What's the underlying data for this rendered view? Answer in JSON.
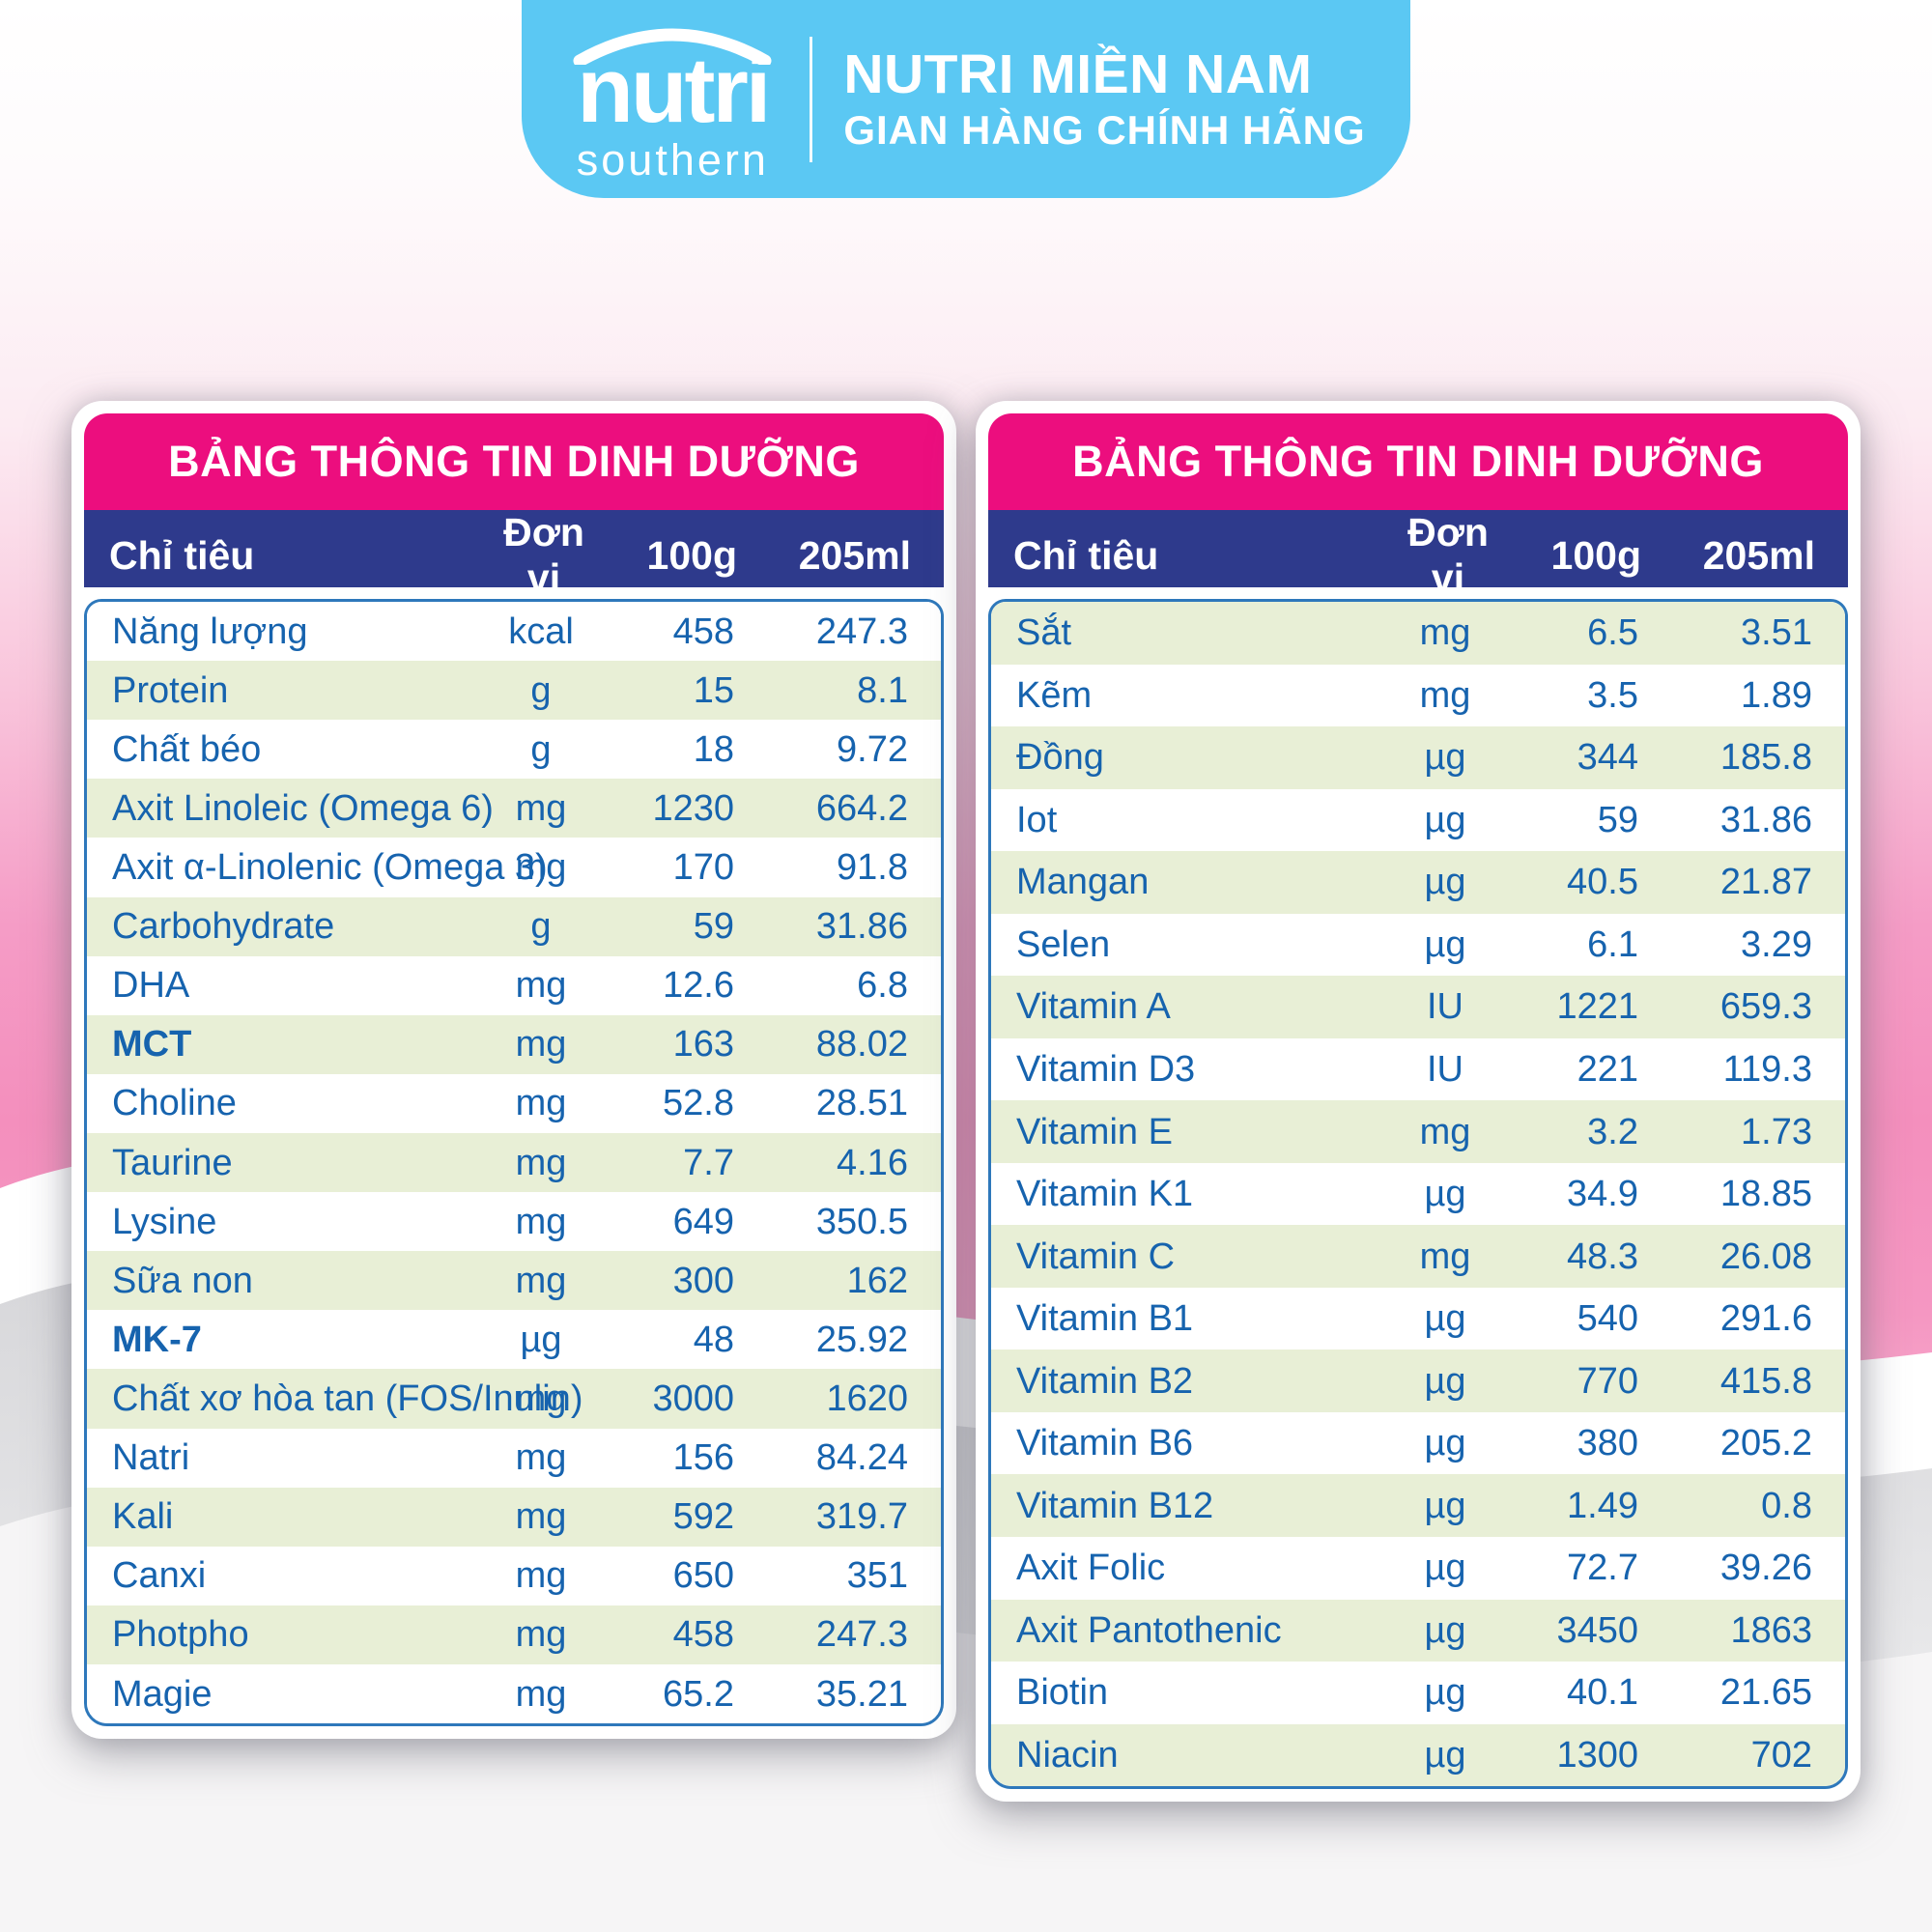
{
  "badge": {
    "logo_primary": "nutri",
    "logo_secondary": "southern",
    "store_name": "NUTRI MIỀN NAM",
    "store_subtitle": "GIAN HÀNG CHÍNH HÃNG",
    "background_color": "#5bc8f3"
  },
  "colors": {
    "header_magenta": "#ec0e7e",
    "header_navy": "#2e3a8c",
    "row_green": "#e8efd6",
    "text_blue": "#1663ae",
    "body_border_blue": "#2e78bb"
  },
  "tables": [
    {
      "title": "BẢNG THÔNG TIN DINH DƯỠNG",
      "columns": [
        "Chỉ tiêu",
        "Đơn vị",
        "100g",
        "205ml"
      ],
      "first_row_shaded": false,
      "rows": [
        {
          "name": "Năng lượng",
          "unit": "kcal",
          "per100g": "458",
          "per205ml": "247.3",
          "bold": false
        },
        {
          "name": "Protein",
          "unit": "g",
          "per100g": "15",
          "per205ml": "8.1",
          "bold": false
        },
        {
          "name": "Chất béo",
          "unit": "g",
          "per100g": "18",
          "per205ml": "9.72",
          "bold": false
        },
        {
          "name": "Axit Linoleic (Omega 6)",
          "unit": "mg",
          "per100g": "1230",
          "per205ml": "664.2",
          "bold": false
        },
        {
          "name": "Axit α-Linolenic (Omega 3)",
          "unit": "mg",
          "per100g": "170",
          "per205ml": "91.8",
          "bold": false
        },
        {
          "name": "Carbohydrate",
          "unit": "g",
          "per100g": "59",
          "per205ml": "31.86",
          "bold": false
        },
        {
          "name": "DHA",
          "unit": "mg",
          "per100g": "12.6",
          "per205ml": "6.8",
          "bold": false
        },
        {
          "name": "MCT",
          "unit": "mg",
          "per100g": "163",
          "per205ml": "88.02",
          "bold": true
        },
        {
          "name": "Choline",
          "unit": "mg",
          "per100g": "52.8",
          "per205ml": "28.51",
          "bold": false
        },
        {
          "name": "Taurine",
          "unit": "mg",
          "per100g": "7.7",
          "per205ml": "4.16",
          "bold": false
        },
        {
          "name": "Lysine",
          "unit": "mg",
          "per100g": "649",
          "per205ml": "350.5",
          "bold": false
        },
        {
          "name": "Sữa non",
          "unit": "mg",
          "per100g": "300",
          "per205ml": "162",
          "bold": false
        },
        {
          "name": "MK-7",
          "unit": "µg",
          "per100g": "48",
          "per205ml": "25.92",
          "bold": true
        },
        {
          "name": "Chất xơ hòa tan (FOS/Inulin)",
          "unit": "mg",
          "per100g": "3000",
          "per205ml": "1620",
          "bold": false
        },
        {
          "name": "Natri",
          "unit": "mg",
          "per100g": "156",
          "per205ml": "84.24",
          "bold": false
        },
        {
          "name": "Kali",
          "unit": "mg",
          "per100g": "592",
          "per205ml": "319.7",
          "bold": false
        },
        {
          "name": "Canxi",
          "unit": "mg",
          "per100g": "650",
          "per205ml": "351",
          "bold": false
        },
        {
          "name": "Photpho",
          "unit": "mg",
          "per100g": "458",
          "per205ml": "247.3",
          "bold": false
        },
        {
          "name": "Magie",
          "unit": "mg",
          "per100g": "65.2",
          "per205ml": "35.21",
          "bold": false
        }
      ]
    },
    {
      "title": "BẢNG THÔNG TIN DINH DƯỠNG",
      "columns": [
        "Chỉ tiêu",
        "Đơn vị",
        "100g",
        "205ml"
      ],
      "first_row_shaded": true,
      "rows": [
        {
          "name": "Sắt",
          "unit": "mg",
          "per100g": "6.5",
          "per205ml": "3.51",
          "bold": false
        },
        {
          "name": "Kẽm",
          "unit": "mg",
          "per100g": "3.5",
          "per205ml": "1.89",
          "bold": false
        },
        {
          "name": "Đồng",
          "unit": "µg",
          "per100g": "344",
          "per205ml": "185.8",
          "bold": false
        },
        {
          "name": "Iot",
          "unit": "µg",
          "per100g": "59",
          "per205ml": "31.86",
          "bold": false
        },
        {
          "name": "Mangan",
          "unit": "µg",
          "per100g": "40.5",
          "per205ml": "21.87",
          "bold": false
        },
        {
          "name": "Selen",
          "unit": "µg",
          "per100g": "6.1",
          "per205ml": "3.29",
          "bold": false
        },
        {
          "name": "Vitamin A",
          "unit": "IU",
          "per100g": "1221",
          "per205ml": "659.3",
          "bold": false
        },
        {
          "name": "Vitamin D3",
          "unit": "IU",
          "per100g": "221",
          "per205ml": "119.3",
          "bold": false
        },
        {
          "name": "Vitamin E",
          "unit": "mg",
          "per100g": "3.2",
          "per205ml": "1.73",
          "bold": false
        },
        {
          "name": "Vitamin K1",
          "unit": "µg",
          "per100g": "34.9",
          "per205ml": "18.85",
          "bold": false
        },
        {
          "name": "Vitamin C",
          "unit": "mg",
          "per100g": "48.3",
          "per205ml": "26.08",
          "bold": false
        },
        {
          "name": "Vitamin B1",
          "unit": "µg",
          "per100g": "540",
          "per205ml": "291.6",
          "bold": false
        },
        {
          "name": "Vitamin B2",
          "unit": "µg",
          "per100g": "770",
          "per205ml": "415.8",
          "bold": false
        },
        {
          "name": "Vitamin B6",
          "unit": "µg",
          "per100g": "380",
          "per205ml": "205.2",
          "bold": false
        },
        {
          "name": "Vitamin B12",
          "unit": "µg",
          "per100g": "1.49",
          "per205ml": "0.8",
          "bold": false
        },
        {
          "name": "Axit Folic",
          "unit": "µg",
          "per100g": "72.7",
          "per205ml": "39.26",
          "bold": false
        },
        {
          "name": "Axit Pantothenic",
          "unit": "µg",
          "per100g": "3450",
          "per205ml": "1863",
          "bold": false
        },
        {
          "name": "Biotin",
          "unit": "µg",
          "per100g": "40.1",
          "per205ml": "21.65",
          "bold": false
        },
        {
          "name": "Niacin",
          "unit": "µg",
          "per100g": "1300",
          "per205ml": "702",
          "bold": false
        }
      ]
    }
  ]
}
